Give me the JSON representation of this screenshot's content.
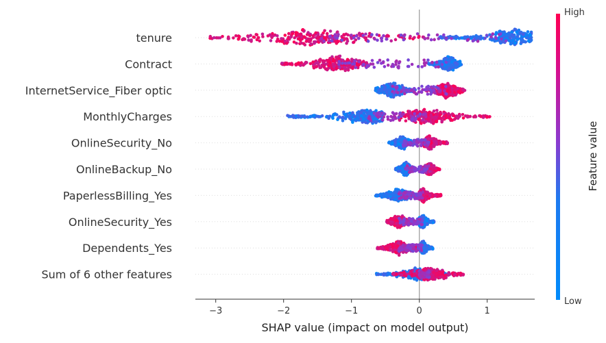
{
  "chart_data": {
    "type": "scatter",
    "subtype": "shap-beeswarm",
    "title": "",
    "xlabel": "SHAP value (impact on model output)",
    "ylabel": "",
    "xlim": [
      -3.3,
      1.7
    ],
    "xticks": [
      -3,
      -2,
      -1,
      0,
      1
    ],
    "xtick_labels": [
      "−3",
      "−2",
      "−1",
      "0",
      "1"
    ],
    "grid": false,
    "colorbar": {
      "label": "Feature value",
      "high_label": "High",
      "low_label": "Low",
      "low_color": "#008bfb",
      "high_color": "#ff0052"
    },
    "features": [
      {
        "name": "tenure",
        "low_range": [
          0.3,
          1.65
        ],
        "high_range": [
          -3.1,
          0.1
        ],
        "low_center": 1.4,
        "high_center": -1.5,
        "spread": 14
      },
      {
        "name": "Contract",
        "low_range": [
          0.13,
          0.62
        ],
        "high_range": [
          -2.05,
          -0.75
        ],
        "low_center": 0.43,
        "high_center": -1.2,
        "spread": 13
      },
      {
        "name": "InternetService_Fiber optic",
        "low_range": [
          -0.65,
          -0.05
        ],
        "high_range": [
          0.1,
          0.68
        ],
        "low_center": -0.4,
        "high_center": 0.4,
        "spread": 13
      },
      {
        "name": "MonthlyCharges",
        "low_range": [
          -1.95,
          -0.55
        ],
        "high_range": [
          -0.3,
          1.05
        ],
        "low_center": -0.8,
        "high_center": 0.1,
        "spread": 13
      },
      {
        "name": "OnlineSecurity_No",
        "low_range": [
          -0.45,
          -0.05
        ],
        "high_range": [
          0.05,
          0.42
        ],
        "low_center": -0.25,
        "high_center": 0.15,
        "spread": 11
      },
      {
        "name": "OnlineBackup_No",
        "low_range": [
          -0.35,
          -0.05
        ],
        "high_range": [
          0.05,
          0.3
        ],
        "low_center": -0.2,
        "high_center": 0.15,
        "spread": 11
      },
      {
        "name": "PaperlessBilling_Yes",
        "low_range": [
          -0.65,
          -0.02
        ],
        "high_range": [
          0.0,
          0.32
        ],
        "low_center": -0.3,
        "high_center": 0.05,
        "spread": 11
      },
      {
        "name": "OnlineSecurity_Yes",
        "low_range": [
          -0.02,
          0.22
        ],
        "high_range": [
          -0.48,
          -0.05
        ],
        "low_center": 0.05,
        "high_center": -0.3,
        "spread": 11
      },
      {
        "name": "Dependents_Yes",
        "low_range": [
          -0.02,
          0.2
        ],
        "high_range": [
          -0.62,
          -0.05
        ],
        "low_center": 0.05,
        "high_center": -0.3,
        "spread": 11
      },
      {
        "name": "Sum of 6 other features",
        "low_range": [
          -0.65,
          0.45
        ],
        "high_range": [
          -0.4,
          0.65
        ],
        "low_center": 0.0,
        "high_center": 0.15,
        "spread": 11
      }
    ]
  }
}
